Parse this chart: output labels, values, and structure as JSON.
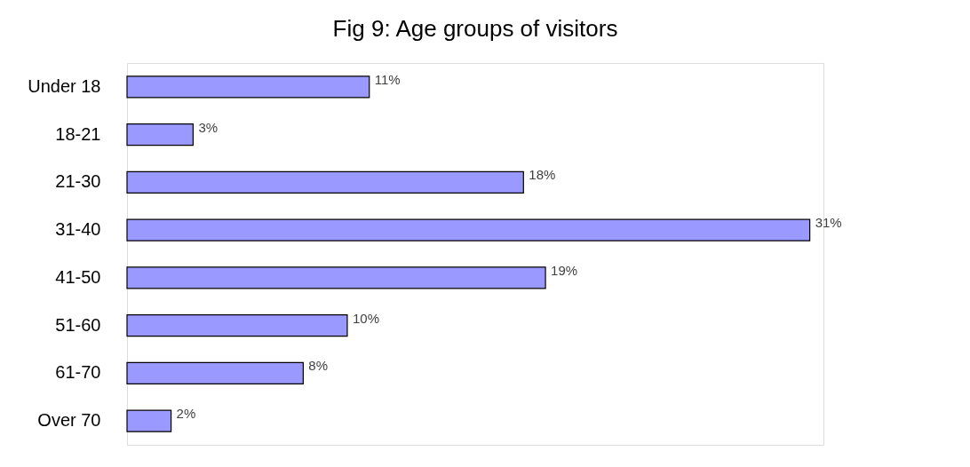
{
  "chart_data": {
    "type": "bar",
    "title": "Fig 9: Age groups of visitors",
    "orientation": "horizontal",
    "categories": [
      "Under 18",
      "18-21",
      "21-30",
      "31-40",
      "41-50",
      "51-60",
      "61-70",
      "Over 70"
    ],
    "values": [
      11,
      3,
      18,
      31,
      19,
      10,
      8,
      2
    ],
    "value_labels": [
      "11%",
      "3%",
      "18%",
      "31%",
      "19%",
      "10%",
      "8%",
      "2%"
    ],
    "color": "#9999ff"
  }
}
